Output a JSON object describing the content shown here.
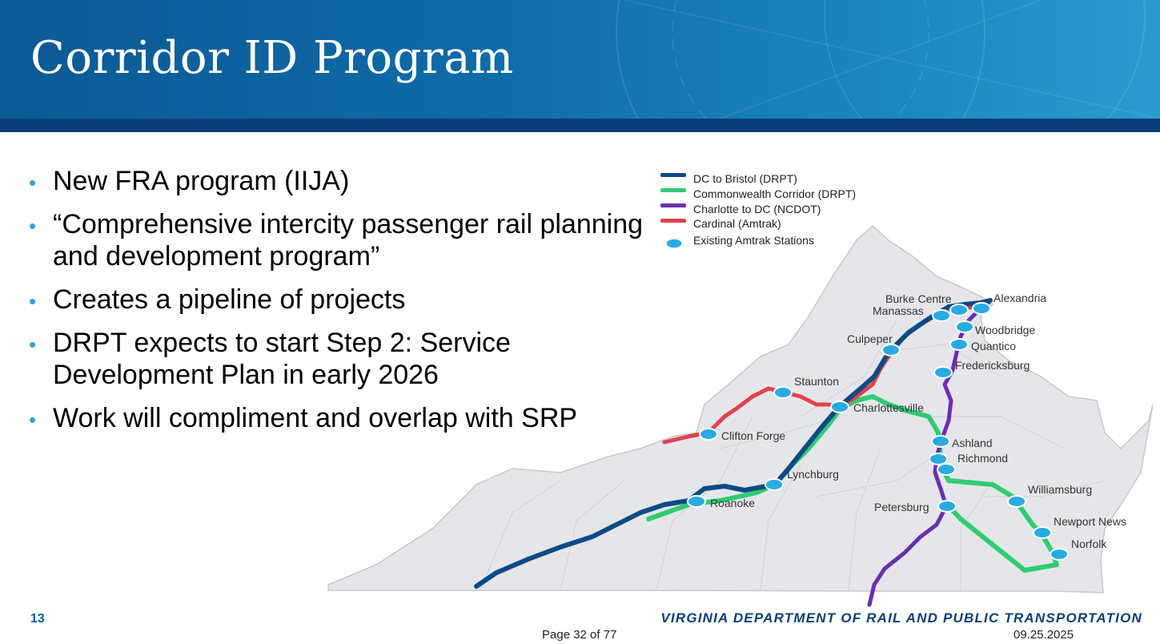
{
  "slide": {
    "title": "Corridor ID Program",
    "number": "13",
    "agency": "VIRGINIA DEPARTMENT OF RAIL AND PUBLIC TRANSPORTATION"
  },
  "bullets": [
    {
      "text": "New FRA program (IIJA)"
    },
    {
      "text": "“Comprehensive intercity passenger rail planning and development program”"
    },
    {
      "text": "Creates a pipeline of projects"
    },
    {
      "text": "DRPT expects to start Step 2: Service Development Plan in early 2026"
    },
    {
      "text": "Work will compliment and overlap with SRP"
    }
  ],
  "map": {
    "legend": [
      {
        "label": "DC to Bristol (DRPT)",
        "color": "#0d4a86"
      },
      {
        "label": "Commonwealth Corridor (DRPT)",
        "color": "#2ecc71"
      },
      {
        "label": "Charlotte to DC (NCDOT)",
        "color": "#6a2fb0"
      },
      {
        "label": "Cardinal (Amtrak)",
        "color": "#e2414e"
      },
      {
        "label": "Existing Amtrak Stations",
        "color": "#29abe2"
      }
    ],
    "stations": {
      "burke_centre": "Burke Centre",
      "manassas": "Manassas",
      "alexandria": "Alexandria",
      "woodbridge": "Woodbridge",
      "quantico": "Quantico",
      "culpeper": "Culpeper",
      "fredericksburg": "Fredericksburg",
      "staunton": "Staunton",
      "charlottesville": "Charlottesville",
      "clifton_forge": "Clifton Forge",
      "ashland": "Ashland",
      "richmond": "Richmond",
      "lynchburg": "Lynchburg",
      "williamsburg": "Williamsburg",
      "roanoke": "Roanoke",
      "petersburg": "Petersburg",
      "newport_news": "Newport News",
      "norfolk": "Norfolk"
    }
  },
  "footer": {
    "page": "Page 32 of 77",
    "date": "09.25.2025"
  }
}
